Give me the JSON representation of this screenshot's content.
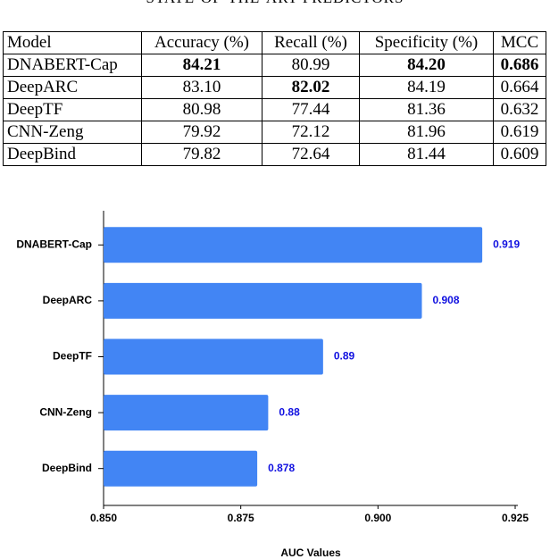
{
  "header": {
    "title": "STATE-OF-THE-ART PREDICTORS"
  },
  "table": {
    "columns": [
      "Model",
      "Accuracy (%)",
      "Recall (%)",
      "Specificity (%)",
      "MCC"
    ],
    "rows": [
      [
        "DNABERT-Cap",
        "84.21",
        "80.99",
        "84.20",
        "0.686"
      ],
      [
        "DeepARC",
        "83.10",
        "82.02",
        "84.19",
        "0.664"
      ],
      [
        "DeepTF",
        "80.98",
        "77.44",
        "81.36",
        "0.632"
      ],
      [
        "CNN-Zeng",
        "79.92",
        "72.12",
        "81.96",
        "0.619"
      ],
      [
        "DeepBind",
        "79.82",
        "72.64",
        "81.44",
        "0.609"
      ]
    ]
  },
  "chart_data": {
    "type": "hbar",
    "x_label": "AUC Values",
    "categories": [
      "DNABERT-Cap",
      "DeepARC",
      "DeepTF",
      "CNN-Zeng",
      "DeepBind"
    ],
    "values": [
      0.919,
      0.908,
      0.89,
      0.88,
      0.878
    ],
    "color": "#4285f4",
    "value_label_color": "#1010e0",
    "xlim": [
      0.85,
      0.925
    ],
    "xticks": [
      {
        "value": 0.85,
        "label": "0.850"
      },
      {
        "value": 0.875,
        "label": "0.875"
      },
      {
        "value": 0.9,
        "label": "0.900"
      },
      {
        "value": 0.925,
        "label": "0.925"
      }
    ]
  }
}
